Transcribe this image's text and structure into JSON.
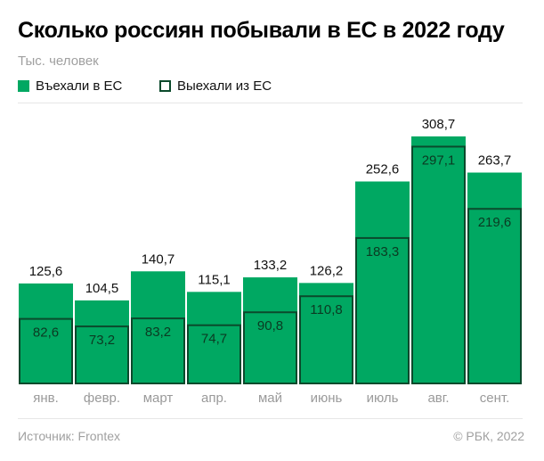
{
  "title": "Сколько россиян побывали в ЕС в 2022 году",
  "subtitle": "Тыс. человек",
  "source": "Источник: Frontex",
  "copyright": "© РБК, 2022",
  "colors": {
    "entered": "#00a862",
    "exited_border": "#0b4a2c",
    "label": "#111111",
    "axis_label": "#9a9a9a"
  },
  "chart_data": {
    "type": "bar",
    "title": "Сколько россиян побывали в ЕС в 2022 году",
    "ylabel": "Тыс. человек",
    "categories": [
      "янв.",
      "февр.",
      "март",
      "апр.",
      "май",
      "июнь",
      "июль",
      "авг.",
      "сент."
    ],
    "series": [
      {
        "name": "Въехали в ЕС",
        "values": [
          125.6,
          104.5,
          140.7,
          115.1,
          133.2,
          126.2,
          252.6,
          308.7,
          263.7
        ],
        "labels": [
          "125,6",
          "104,5",
          "140,7",
          "115,1",
          "133,2",
          "126,2",
          "252,6",
          "308,7",
          "263,7"
        ]
      },
      {
        "name": "Выехали из ЕС",
        "values": [
          82.6,
          73.2,
          83.2,
          74.7,
          90.8,
          110.8,
          183.3,
          297.1,
          219.6
        ],
        "labels": [
          "82,6",
          "73,2",
          "83,2",
          "74,7",
          "90,8",
          "110,8",
          "183,3",
          "297,1",
          "219,6"
        ]
      }
    ],
    "ylim": [
      0,
      308.7
    ],
    "grid": false,
    "legend": "top-left"
  }
}
